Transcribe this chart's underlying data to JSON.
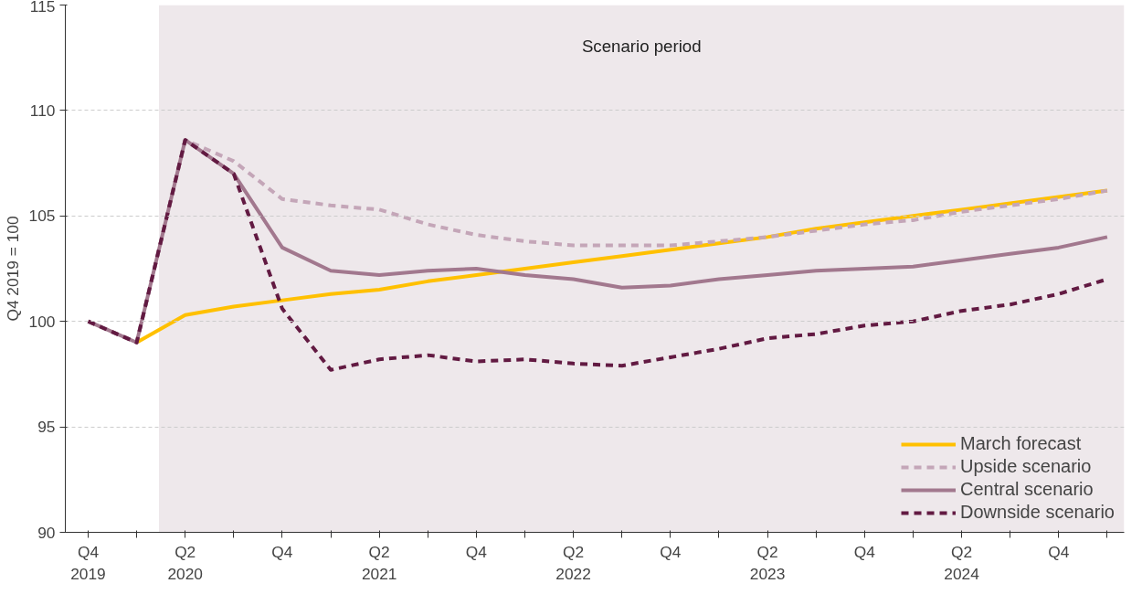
{
  "chart_data": {
    "type": "line",
    "ylabel": "Q4 2019 = 100",
    "categories": [
      "Q4\n2019",
      null,
      "Q2\n2020",
      null,
      "Q4",
      null,
      "Q2\n2021",
      null,
      "Q4",
      null,
      "Q2\n2022",
      null,
      "Q4",
      null,
      "Q2\n2023",
      null,
      "Q4",
      null,
      "Q2\n2024",
      null,
      "Q4",
      null
    ],
    "ylim": [
      90,
      115
    ],
    "yticks": [
      90,
      95,
      100,
      105,
      110,
      115
    ],
    "grid": "y",
    "legend": "bottom right",
    "annotations": [
      "Scenario period"
    ],
    "series": [
      {
        "name": "March forecast",
        "color": "#ffc000",
        "line_style": "solid",
        "values": [
          null,
          99.0,
          100.3,
          100.7,
          101.0,
          101.3,
          101.5,
          101.9,
          102.2,
          102.5,
          102.8,
          103.1,
          103.4,
          103.7,
          104.0,
          104.4,
          104.7,
          105.0,
          105.3,
          105.6,
          105.9,
          106.2
        ]
      },
      {
        "name": "Upside scenario",
        "color": "#c4a6b8",
        "line_style": "dashed",
        "values": [
          100,
          99.0,
          108.6,
          107.6,
          105.8,
          105.5,
          105.3,
          104.6,
          104.1,
          103.8,
          103.6,
          103.6,
          103.6,
          103.8,
          104.0,
          104.3,
          104.6,
          104.8,
          105.2,
          105.5,
          105.8,
          106.2
        ]
      },
      {
        "name": "Central scenario",
        "color": "#a2788e",
        "line_style": "solid",
        "values": [
          100,
          99.0,
          108.6,
          107.0,
          103.5,
          102.4,
          102.2,
          102.4,
          102.5,
          102.2,
          102.0,
          101.6,
          101.7,
          102.0,
          102.2,
          102.4,
          102.5,
          102.6,
          102.9,
          103.2,
          103.5,
          104.0
        ]
      },
      {
        "name": "Downside scenario",
        "color": "#621a42",
        "line_style": "dashed",
        "values": [
          100,
          99.0,
          108.6,
          107.0,
          100.6,
          97.7,
          98.2,
          98.4,
          98.1,
          98.2,
          98.0,
          97.9,
          98.3,
          98.7,
          99.2,
          99.4,
          99.8,
          100.0,
          100.5,
          100.8,
          101.3,
          102.0
        ]
      }
    ]
  }
}
